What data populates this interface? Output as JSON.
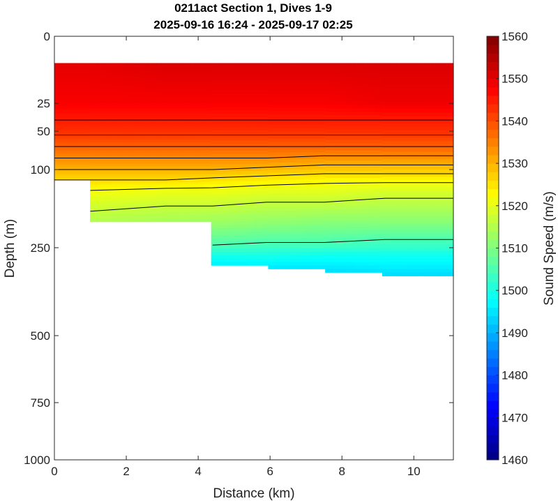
{
  "chart_data": {
    "type": "heatmap",
    "title": "0211act Section 1, Dives 1-9",
    "subtitle": "2025-09-16 16:24 - 2025-09-17 02:25",
    "xlabel": "Distance (km)",
    "ylabel": "Depth (m)",
    "colorbar_label": "Sound Speed (m/s)",
    "xlim": [
      0,
      11.1
    ],
    "ylim": [
      1000,
      0
    ],
    "y_scale": "nonlinear (stretched near surface)",
    "x_ticks": [
      0,
      2,
      4,
      6,
      8,
      10
    ],
    "y_ticks": [
      0,
      25,
      50,
      100,
      250,
      500,
      750,
      1000
    ],
    "colorbar_ticks": [
      1460,
      1470,
      1480,
      1490,
      1500,
      1510,
      1520,
      1530,
      1540,
      1550,
      1560
    ],
    "clim": [
      1460,
      1560
    ],
    "colormap": "jet",
    "contour_color": "#000000",
    "grid": false,
    "profiles": [
      {
        "x": 0.0,
        "max_depth": 120,
        "depth": [
          10,
          25,
          40,
          55,
          70,
          85,
          100,
          120
        ],
        "sound_speed": [
          1550,
          1548,
          1545,
          1542,
          1538,
          1534,
          1530,
          1526
        ]
      },
      {
        "x": 1.0,
        "max_depth": 200,
        "depth": [
          10,
          25,
          40,
          55,
          70,
          85,
          100,
          120,
          140,
          170,
          200
        ],
        "sound_speed": [
          1550,
          1548,
          1545,
          1542,
          1538,
          1534,
          1530,
          1526,
          1522,
          1518,
          1515
        ]
      },
      {
        "x": 3.1,
        "max_depth": 200,
        "depth": [
          10,
          25,
          40,
          55,
          70,
          85,
          100,
          120,
          140,
          170,
          200
        ],
        "sound_speed": [
          1551,
          1548,
          1545,
          1542,
          1538,
          1534,
          1530,
          1526,
          1521,
          1517,
          1514
        ]
      },
      {
        "x": 4.4,
        "max_depth": 300,
        "depth": [
          10,
          25,
          40,
          55,
          70,
          85,
          100,
          120,
          140,
          170,
          200,
          240,
          270,
          300
        ],
        "sound_speed": [
          1551,
          1548,
          1545,
          1542,
          1538,
          1534,
          1530,
          1525,
          1521,
          1517,
          1513,
          1506,
          1500,
          1496
        ]
      },
      {
        "x": 5.9,
        "max_depth": 310,
        "depth": [
          10,
          25,
          40,
          55,
          70,
          85,
          100,
          120,
          140,
          170,
          200,
          240,
          270,
          310
        ],
        "sound_speed": [
          1551,
          1548,
          1545,
          1542,
          1538,
          1534,
          1529,
          1524,
          1520,
          1516,
          1512,
          1505,
          1500,
          1495
        ]
      },
      {
        "x": 7.5,
        "max_depth": 320,
        "depth": [
          10,
          25,
          40,
          55,
          70,
          85,
          100,
          120,
          140,
          170,
          200,
          240,
          270,
          320
        ],
        "sound_speed": [
          1551,
          1548,
          1545,
          1542,
          1538,
          1533,
          1528,
          1523,
          1520,
          1516,
          1511,
          1505,
          1499,
          1494
        ]
      },
      {
        "x": 9.2,
        "max_depth": 330,
        "depth": [
          10,
          25,
          40,
          55,
          70,
          85,
          100,
          120,
          140,
          170,
          200,
          240,
          270,
          330
        ],
        "sound_speed": [
          1551,
          1549,
          1545,
          1542,
          1538,
          1533,
          1528,
          1523,
          1519,
          1515,
          1511,
          1504,
          1499,
          1494
        ]
      },
      {
        "x": 11.1,
        "max_depth": 340,
        "depth": [
          10,
          25,
          40,
          55,
          70,
          85,
          100,
          120,
          140,
          170,
          200,
          240,
          270,
          340
        ],
        "sound_speed": [
          1551,
          1549,
          1545,
          1542,
          1538,
          1533,
          1528,
          1523,
          1519,
          1515,
          1511,
          1504,
          1499,
          1493
        ]
      }
    ],
    "contour_levels": [
      1545,
      1542,
      1538,
      1534,
      1530,
      1526,
      1522,
      1517,
      1505
    ]
  }
}
